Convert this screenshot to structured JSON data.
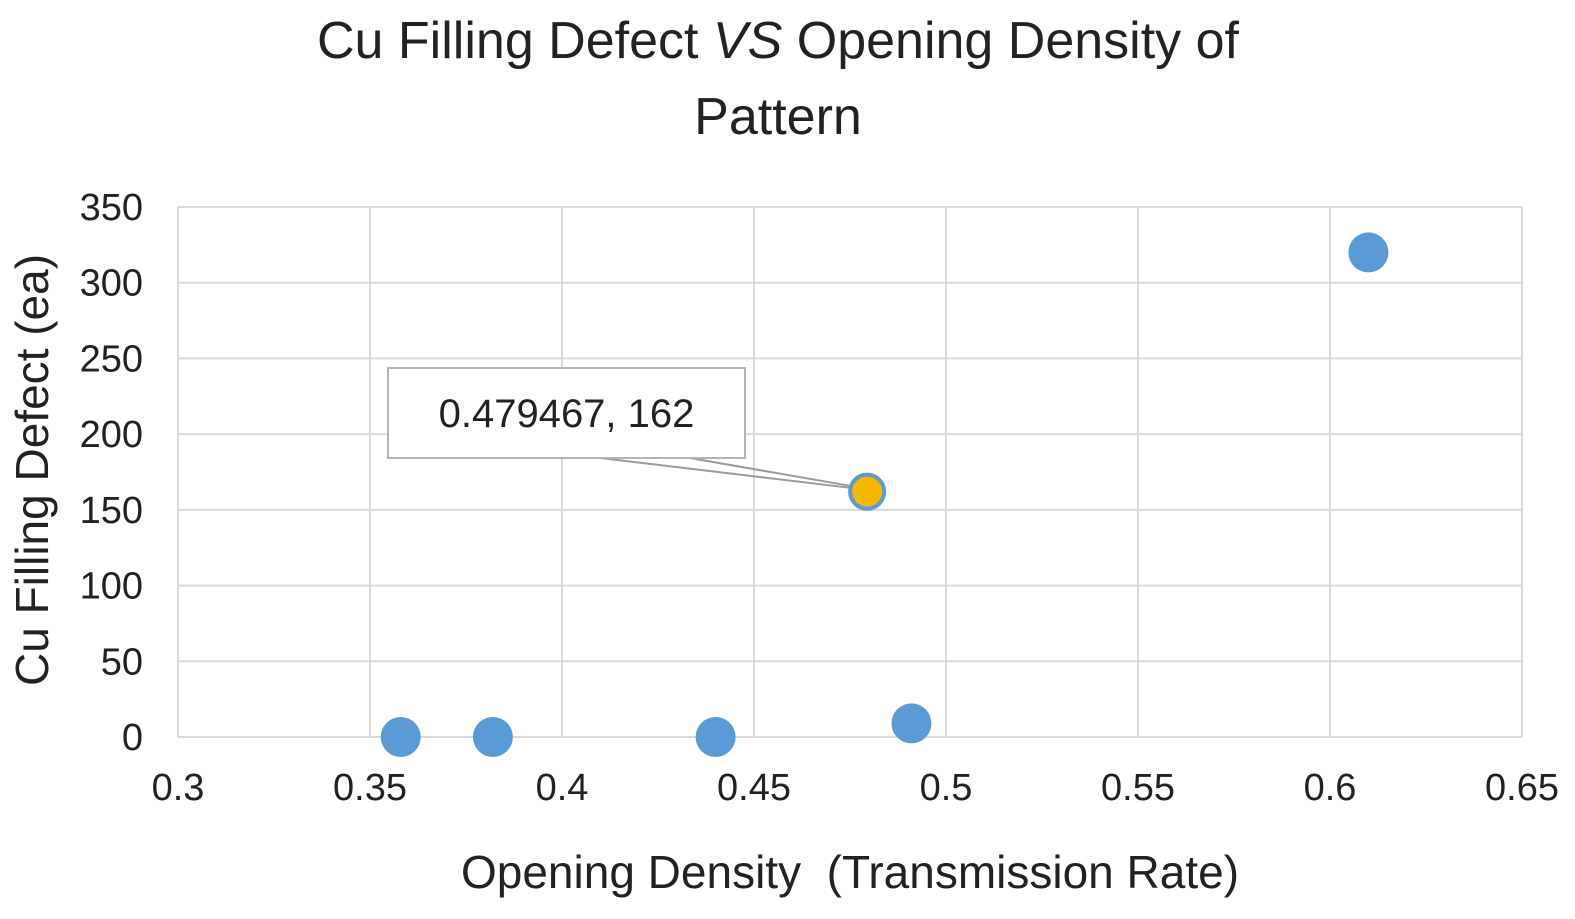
{
  "chart_data": {
    "type": "scatter",
    "title_parts": [
      "Cu Filling Defect ",
      "VS",
      " Opening Density of"
    ],
    "title_line2": "Pattern",
    "xlabel": "Opening Density  (Transmission Rate)",
    "ylabel": "Cu Filling Defect (ea)",
    "xlim": [
      0.3,
      0.65
    ],
    "ylim": [
      0,
      350
    ],
    "x_ticks": [
      0.3,
      0.35,
      0.4,
      0.45,
      0.5,
      0.55,
      0.6,
      0.65
    ],
    "x_tick_labels": [
      "0.3",
      "0.35",
      "0.4",
      "0.45",
      "0.5",
      "0.55",
      "0.6",
      "0.65"
    ],
    "y_ticks": [
      0,
      50,
      100,
      150,
      200,
      250,
      300,
      350
    ],
    "y_tick_labels": [
      "0",
      "50",
      "100",
      "150",
      "200",
      "250",
      "300",
      "350"
    ],
    "grid": true,
    "points": [
      {
        "x": 0.358,
        "y": 0,
        "highlight": false
      },
      {
        "x": 0.382,
        "y": 0,
        "highlight": false
      },
      {
        "x": 0.44,
        "y": 0,
        "highlight": false
      },
      {
        "x": 0.479467,
        "y": 162,
        "highlight": true
      },
      {
        "x": 0.491,
        "y": 9,
        "highlight": false
      },
      {
        "x": 0.61,
        "y": 320,
        "highlight": false
      }
    ],
    "annotation": {
      "text": "0.479467, 162",
      "point_index": 3
    },
    "colors": {
      "point": "#5b9bd5",
      "highlight": "#f5b700",
      "grid": "#d9d9d9"
    }
  }
}
